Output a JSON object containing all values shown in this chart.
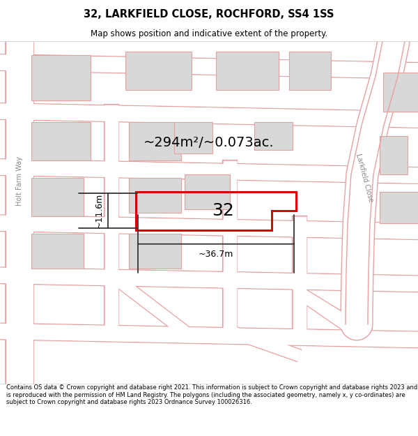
{
  "title": "32, LARKFIELD CLOSE, ROCHFORD, SS4 1SS",
  "subtitle": "Map shows position and indicative extent of the property.",
  "footer": "Contains OS data © Crown copyright and database right 2021. This information is subject to Crown copyright and database rights 2023 and is reproduced with the permission of HM Land Registry. The polygons (including the associated geometry, namely x, y co-ordinates) are subject to Crown copyright and database rights 2023 Ordnance Survey 100026316.",
  "bg_color": "#ffffff",
  "map_bg": "#f7f7f7",
  "area_label": "~294m²/~0.073ac.",
  "plot_number": "32",
  "width_label": "~36.7m",
  "height_label": "~11.6m",
  "plot_color": "#dd0000",
  "road_color": "#e8a0a0",
  "building_color": "#d8d8d8",
  "building_edge": "#e8a0a0",
  "road_label_1": "Holt Farm Way",
  "road_label_2": "Larkfield Close",
  "title_fontsize": 10.5,
  "subtitle_fontsize": 8.5,
  "footer_fontsize": 6.0
}
